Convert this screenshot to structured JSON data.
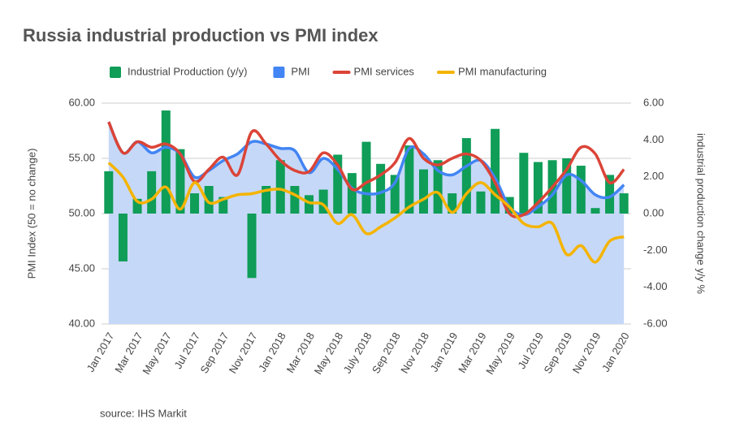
{
  "chart_data": {
    "type": "combo",
    "title": "Russia industrial production vs PMI index",
    "source": "source: IHS Markit",
    "y_label": "PMI Index (50 = no change)",
    "y2_label": "industrial production change y/y %",
    "legend": "top",
    "grid": true,
    "categories": [
      "Jan 2017",
      null,
      "Mar 2017",
      null,
      "May 2017",
      null,
      "Jul 2017",
      null,
      "Sep 2017",
      null,
      "Nov 2017",
      null,
      "Jan 2018",
      null,
      "Mar 2018",
      null,
      "May 2018",
      null,
      "July 2018",
      null,
      "Sep 2018",
      null,
      "Nov 2018",
      null,
      "Jan 2019",
      null,
      "Mar 2019",
      null,
      "May 2019",
      null,
      "Jul 2019",
      null,
      "Sep 2019",
      null,
      "Nov 2019",
      null,
      "Jan 2020"
    ],
    "ylim": [
      40,
      60
    ],
    "yticks": [
      {
        "value": 40,
        "label": "40.00"
      },
      {
        "value": 45,
        "label": "45.00"
      },
      {
        "value": 50,
        "label": "50.00"
      },
      {
        "value": 55,
        "label": "55.00"
      },
      {
        "value": 60,
        "label": "60.00"
      }
    ],
    "y2lim": [
      -6,
      6
    ],
    "y2ticks": [
      {
        "value": -6,
        "label": "-6.00"
      },
      {
        "value": -4,
        "label": "-4.00"
      },
      {
        "value": -2,
        "label": "-2.00"
      },
      {
        "value": 0,
        "label": "0.00"
      },
      {
        "value": 2,
        "label": "2.00"
      },
      {
        "value": 4,
        "label": "4.00"
      },
      {
        "value": 6,
        "label": "6.00"
      }
    ],
    "series": [
      {
        "name": "Industrial Production (y/y)",
        "type": "bar",
        "axis": "y2",
        "color": "#0f9d58",
        "values": [
          2.3,
          -2.6,
          0.8,
          2.3,
          5.6,
          3.5,
          1.1,
          1.5,
          0.9,
          0,
          -3.5,
          1.5,
          2.9,
          1.5,
          1.0,
          1.3,
          3.2,
          2.2,
          3.9,
          2.7,
          2.1,
          3.7,
          2.4,
          2.9,
          1.1,
          4.1,
          1.2,
          4.6,
          0.9,
          3.3,
          2.8,
          2.9,
          3.0,
          2.6,
          0.3,
          2.1,
          1.1
        ]
      },
      {
        "name": "PMI",
        "type": "area",
        "color": "#4285f4",
        "fill": "#c6d8f8",
        "values": [
          58.3,
          55.5,
          56.5,
          55.5,
          56.0,
          55.4,
          53.3,
          53.9,
          54.8,
          55.4,
          56.5,
          56.3,
          55.9,
          55.7,
          53.7,
          55.0,
          54.0,
          52.3,
          51.8,
          51.9,
          52.8,
          55.9,
          55.4,
          53.9,
          53.5,
          54.3,
          54.8,
          53.2,
          50.6,
          49.9,
          50.6,
          51.7,
          53.5,
          53.0,
          51.7,
          51.5,
          52.6
        ]
      },
      {
        "name": "PMI services",
        "type": "line",
        "color": "#db4437",
        "values": [
          58.3,
          55.5,
          56.5,
          56.0,
          56.3,
          55.4,
          52.9,
          54.0,
          55.1,
          53.5,
          57.4,
          56.3,
          54.8,
          53.9,
          53.8,
          55.5,
          54.4,
          52.2,
          52.8,
          53.5,
          54.6,
          56.8,
          55.0,
          54.4,
          55.0,
          55.4,
          54.8,
          52.8,
          50.0,
          49.9,
          51.0,
          52.4,
          54.0,
          56.0,
          55.4,
          52.8,
          54.0
        ]
      },
      {
        "name": "PMI manufacturing",
        "type": "line",
        "color": "#f4b400",
        "values": [
          54.6,
          53.3,
          51.1,
          51.3,
          52.4,
          50.4,
          52.8,
          51.0,
          51.3,
          51.7,
          51.8,
          52.1,
          52.2,
          51.7,
          51.0,
          50.8,
          49.1,
          49.9,
          48.2,
          48.8,
          49.6,
          50.6,
          51.3,
          51.9,
          50.1,
          51.8,
          52.8,
          51.7,
          50.6,
          49.1,
          48.8,
          49.1,
          46.3,
          47.1,
          45.6,
          47.5,
          47.9
        ]
      }
    ]
  }
}
